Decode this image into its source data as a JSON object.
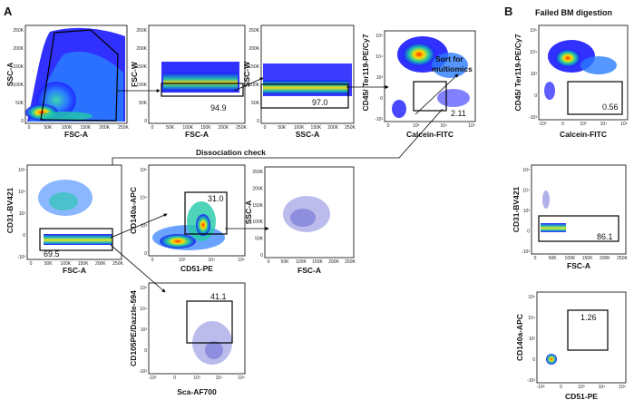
{
  "panel_a": {
    "letter": "A",
    "plot1": {
      "xlabel": "FSC-A",
      "ylabel": "SSC-A",
      "xticks": [
        "0",
        "50K",
        "100K",
        "150K",
        "200K",
        "250K"
      ],
      "yticks": [
        "0",
        "50K",
        "100K",
        "150K",
        "200K",
        "250K"
      ]
    },
    "plot2": {
      "xlabel": "FSC-A",
      "ylabel": "FSC-W",
      "gate_value": "94.9",
      "xticks": [
        "0",
        "50K",
        "100K",
        "150K",
        "200K",
        "250K"
      ],
      "yticks": [
        "0",
        "50K",
        "100K",
        "150K",
        "200K",
        "250K"
      ]
    },
    "plot3": {
      "xlabel": "SSC-A",
      "ylabel": "SSC-W",
      "gate_value": "97.0",
      "xticks": [
        "0",
        "50K",
        "100K",
        "150K",
        "200K",
        "250K"
      ],
      "yticks": [
        "0",
        "50K",
        "100K",
        "150K",
        "200K",
        "250K"
      ]
    },
    "plot4": {
      "xlabel": "Calcein-FITC",
      "ylabel": "CD45/ Ter119-PE/Cy7",
      "gate_value": "2.11",
      "annotation_line1": "Sort for",
      "annotation_line2": "multiomics",
      "xticks": [
        "0",
        "10³",
        "10⁴",
        "10⁵"
      ],
      "yticks": [
        "-10³",
        "0",
        "10³",
        "10⁴",
        "10⁵"
      ]
    },
    "dissociation_label": "Dissociation check",
    "plot5": {
      "xlabel": "FSC-A",
      "ylabel": "CD31-BV421",
      "gate_value": "69.5",
      "xticks": [
        "0",
        "50K",
        "100K",
        "150K",
        "200K",
        "250K"
      ],
      "yticks": [
        "-10³",
        "0",
        "10³",
        "10⁴",
        "10⁵"
      ]
    },
    "plot6": {
      "xlabel": "CD51-PE",
      "ylabel": "CD140a-APC",
      "gate_value": "31.0",
      "xticks": [
        "0",
        "10³",
        "10⁴",
        "10⁵"
      ],
      "yticks": [
        "0",
        "10³",
        "10⁴",
        "10⁵"
      ]
    },
    "plot7": {
      "xlabel": "FSC-A",
      "ylabel": "SSC-A",
      "xticks": [
        "0",
        "50K",
        "100K",
        "150K",
        "200K",
        "250K"
      ],
      "yticks": [
        "0",
        "50K",
        "100K",
        "150K",
        "200K",
        "250K"
      ]
    },
    "plot8": {
      "xlabel": "Sca-AF700",
      "ylabel": "CD105PE/Dazzle-594",
      "gate_value": "41.1",
      "xticks": [
        "-10³",
        "0",
        "10³",
        "10⁴",
        "10⁵"
      ],
      "yticks": [
        "-10³",
        "0",
        "10³",
        "10⁴",
        "10⁵"
      ]
    }
  },
  "panel_b": {
    "letter": "B",
    "title": "Failed BM digestion",
    "plot1": {
      "xlabel": "Calcein-FITC",
      "ylabel": "CD45/ Ter119-PE/Cy7",
      "gate_value": "0.56",
      "xticks": [
        "-10³",
        "0",
        "10³",
        "10⁴",
        "10⁵"
      ],
      "yticks": [
        "-10³",
        "0",
        "10³",
        "10⁴",
        "10⁵"
      ]
    },
    "plot2": {
      "xlabel": "FSC-A",
      "ylabel": "CD31-BV421",
      "gate_value": "86.1",
      "xticks": [
        "0",
        "50K",
        "100K",
        "150K",
        "200K",
        "250K"
      ],
      "yticks": [
        "-10³",
        "0",
        "10³",
        "10⁴",
        "10⁵"
      ]
    },
    "plot3": {
      "xlabel": "CD51-PE",
      "ylabel": "CD140a-APC",
      "gate_value": "1.26",
      "xticks": [
        "-10³",
        "0",
        "10³",
        "10⁴",
        "10⁵"
      ],
      "yticks": [
        "-10³",
        "0",
        "10³",
        "10⁴",
        "10⁵"
      ]
    }
  },
  "colors": {
    "density_low": "#1a1aff",
    "density_mid": "#22c9a8",
    "density_high": "#ffe000",
    "density_peak": "#ff2a00",
    "sparse": "#3b3bc8"
  }
}
